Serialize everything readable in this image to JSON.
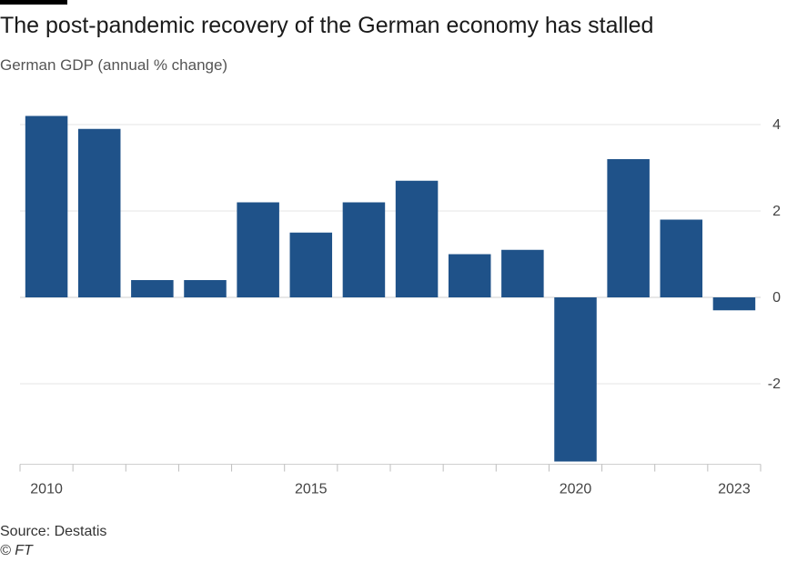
{
  "header": {
    "title": "The post-pandemic recovery of the German economy has stalled",
    "subtitle": "German GDP (annual % change)"
  },
  "footer": {
    "source": "Source: Destatis",
    "credit": "© FT"
  },
  "colors": {
    "bar": "#1f5289",
    "grid": "#e6e6e6",
    "axis_text": "#444444"
  },
  "chart_data": {
    "type": "bar",
    "title": "The post-pandemic recovery of the German economy has stalled",
    "subtitle": "German GDP (annual % change)",
    "xlabel": "",
    "ylabel": "",
    "categories": [
      "2010",
      "2011",
      "2012",
      "2013",
      "2014",
      "2015",
      "2016",
      "2017",
      "2018",
      "2019",
      "2020",
      "2021",
      "2022",
      "2023"
    ],
    "values": [
      4.2,
      3.9,
      0.4,
      0.4,
      2.2,
      1.5,
      2.2,
      2.7,
      1.0,
      1.1,
      -3.8,
      3.2,
      1.8,
      -0.3
    ],
    "ylim": [
      -3.8,
      4.2
    ],
    "yticks": [
      4,
      2,
      0,
      -2
    ],
    "ytick_labels": [
      "4",
      "2",
      "0",
      "-2"
    ],
    "xtick_labels": [
      "2010",
      "2015",
      "2020",
      "2023"
    ],
    "grid": true,
    "y_axis_side": "right"
  }
}
